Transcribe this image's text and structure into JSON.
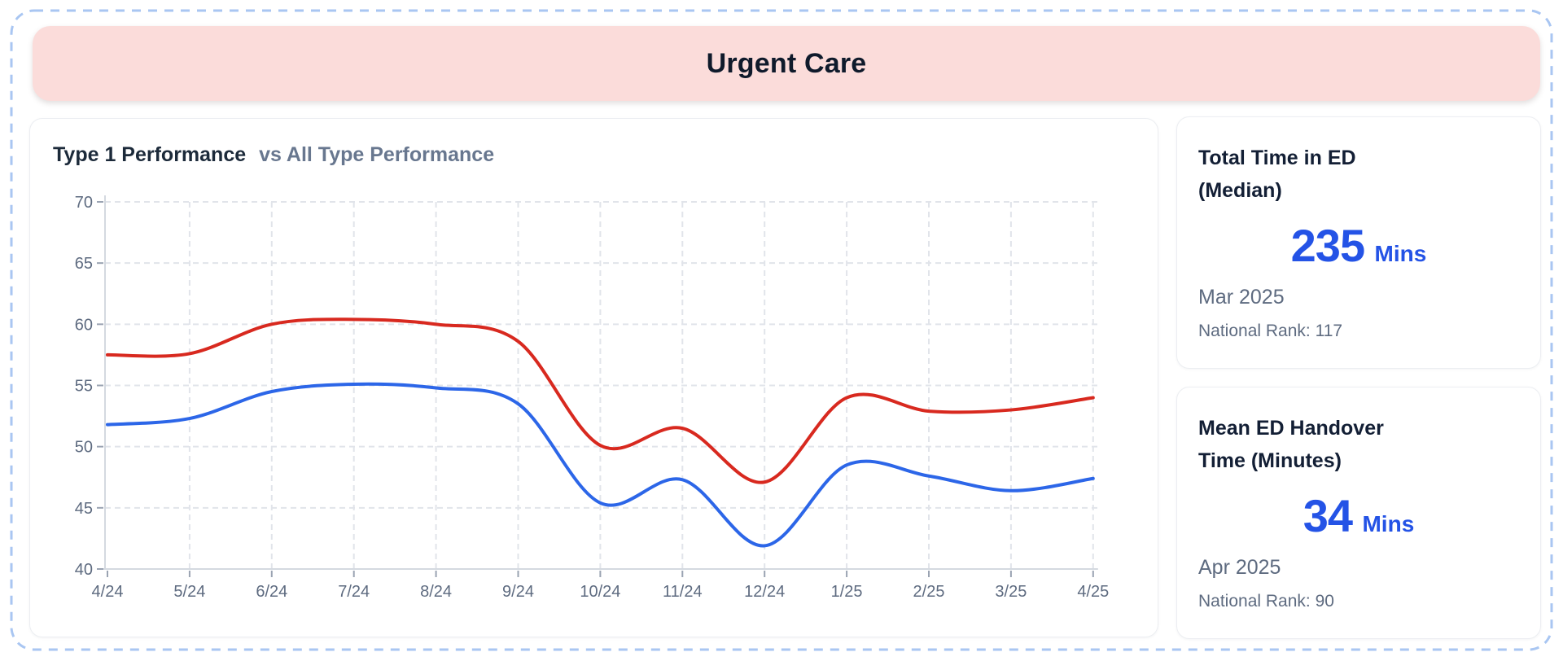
{
  "banner": {
    "title": "Urgent Care"
  },
  "chart": {
    "title_primary": "Type 1 Performance",
    "title_secondary": "vs All Type Performance"
  },
  "chart_data": {
    "type": "line",
    "categories": [
      "4/24",
      "5/24",
      "6/24",
      "7/24",
      "8/24",
      "9/24",
      "10/24",
      "11/24",
      "12/24",
      "1/25",
      "2/25",
      "3/25",
      "4/25"
    ],
    "series": [
      {
        "name": "All Type Performance",
        "color": "#d8291f",
        "values": [
          57.5,
          57.6,
          60.0,
          60.4,
          60.0,
          58.6,
          50.1,
          51.5,
          47.1,
          54.0,
          52.9,
          53.0,
          54.0
        ]
      },
      {
        "name": "Type 1 Performance",
        "color": "#2c66e8",
        "values": [
          51.8,
          52.3,
          54.5,
          55.1,
          54.8,
          53.5,
          45.4,
          47.3,
          41.9,
          48.5,
          47.6,
          46.4,
          47.4
        ]
      }
    ],
    "ylim": [
      40,
      70
    ],
    "yticks": [
      40,
      45,
      50,
      55,
      60,
      65,
      70
    ],
    "grid": "dashed",
    "legend": "none",
    "xlabel": "",
    "ylabel": ""
  },
  "stats": [
    {
      "title_line1": "Total Time in ED",
      "title_line2": "(Median)",
      "value": "235",
      "unit": "Mins",
      "period": "Mar 2025",
      "rank": "National Rank: 117"
    },
    {
      "title_line1": "Mean ED Handover",
      "title_line2": "Time (Minutes)",
      "value": "34",
      "unit": "Mins",
      "period": "Apr 2025",
      "rank": "National Rank: 90"
    }
  ],
  "colors": {
    "banner_bg": "#fbdcda",
    "banner_text": "#0f1a2b",
    "stat_accent": "#2453e6",
    "line_red": "#d8291f",
    "line_blue": "#2c66e8",
    "dashed_border": "#a9c6f2",
    "gridline": "#e1e4ea",
    "axis": "#d4d9e0",
    "tick": "#9aa3b2",
    "axis_label": "#5e6b80"
  }
}
